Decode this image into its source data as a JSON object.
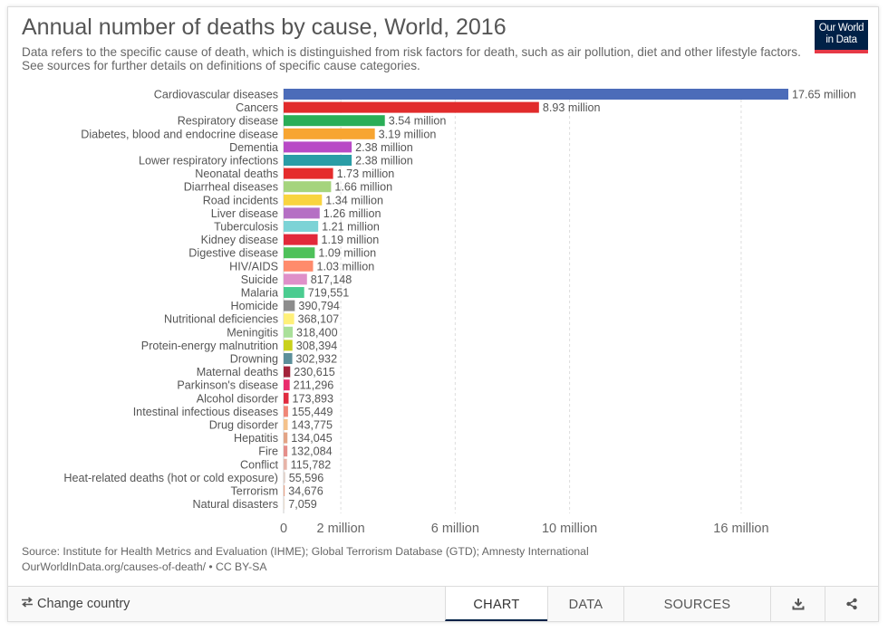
{
  "header": {
    "title": "Annual number of deaths by cause, World, 2016",
    "subtitle": "Data refers to the specific cause of death, which is distinguished from risk factors for death, such as air pollution, diet and other lifestyle factors. See sources for further details on definitions of specific cause categories.",
    "logo_line1": "Our World",
    "logo_line2": "in Data"
  },
  "footer": {
    "source": "Source: Institute for Health Metrics and Evaluation (IHME); Global Terrorism Database (GTD); Amnesty International",
    "url_line": "OurWorldInData.org/causes-of-death/ • CC BY-SA"
  },
  "toolbar": {
    "change_country": "Change country",
    "change_country_icon": "swap-arrows-icon",
    "tabs": [
      "CHART",
      "DATA",
      "SOURCES"
    ],
    "active_tab": "CHART",
    "download_icon": "download-icon",
    "share_icon": "share-icon"
  },
  "colors": {
    "brand": "#002147",
    "logo_accent": "#e63946",
    "grid": "#dddddd"
  },
  "chart_data": {
    "type": "bar",
    "orientation": "horizontal",
    "title": "Annual number of deaths by cause, World, 2016",
    "xlim": [
      0,
      18000000
    ],
    "xticks": [
      0,
      2000000,
      6000000,
      10000000,
      16000000
    ],
    "xtick_labels": [
      "0",
      "2 million",
      "6 million",
      "10 million",
      "16 million"
    ],
    "grid": "vertical dashed",
    "categories": [
      "Cardiovascular diseases",
      "Cancers",
      "Respiratory disease",
      "Diabetes, blood and endocrine disease",
      "Dementia",
      "Lower respiratory infections",
      "Neonatal deaths",
      "Diarrheal diseases",
      "Road incidents",
      "Liver disease",
      "Tuberculosis",
      "Kidney disease",
      "Digestive disease",
      "HIV/AIDS",
      "Suicide",
      "Malaria",
      "Homicide",
      "Nutritional deficiencies",
      "Meningitis",
      "Protein-energy malnutrition",
      "Drowning",
      "Maternal deaths",
      "Parkinson's disease",
      "Alcohol disorder",
      "Intestinal infectious diseases",
      "Drug disorder",
      "Hepatitis",
      "Fire",
      "Conflict",
      "Heat-related deaths (hot or cold exposure)",
      "Terrorism",
      "Natural disasters"
    ],
    "values": [
      17650000,
      8930000,
      3540000,
      3190000,
      2380000,
      2380000,
      1730000,
      1660000,
      1340000,
      1260000,
      1210000,
      1190000,
      1090000,
      1030000,
      817148,
      719551,
      390794,
      368107,
      318400,
      308394,
      302932,
      230615,
      211296,
      173893,
      155449,
      143775,
      134045,
      132084,
      115782,
      55596,
      34676,
      7059
    ],
    "value_labels": [
      "17.65 million",
      "8.93 million",
      "3.54 million",
      "3.19 million",
      "2.38 million",
      "2.38 million",
      "1.73 million",
      "1.66 million",
      "1.34 million",
      "1.26 million",
      "1.21 million",
      "1.19 million",
      "1.09 million",
      "1.03 million",
      "817,148",
      "719,551",
      "390,794",
      "368,107",
      "318,400",
      "308,394",
      "302,932",
      "230,615",
      "211,296",
      "173,893",
      "155,449",
      "143,775",
      "134,045",
      "132,084",
      "115,782",
      "55,596",
      "34,676",
      "7,059"
    ],
    "colors": [
      "#4c6cb9",
      "#e12b2b",
      "#2aae57",
      "#f7a531",
      "#b84ac6",
      "#2a9da6",
      "#e52c2c",
      "#a5d47d",
      "#f9d43f",
      "#b56fc4",
      "#7cd3d6",
      "#e2293a",
      "#4ec15a",
      "#ff8b6c",
      "#df90c9",
      "#4bcc90",
      "#8c8c8c",
      "#fff07a",
      "#aae09a",
      "#c9d11c",
      "#5c8f9a",
      "#a3233a",
      "#e92c6d",
      "#e02b3f",
      "#f08778",
      "#f4c28c",
      "#e3a486",
      "#e58f8b",
      "#e7b4a8",
      "#e0d0c8",
      "#e8a58c",
      "#eaded0"
    ]
  }
}
